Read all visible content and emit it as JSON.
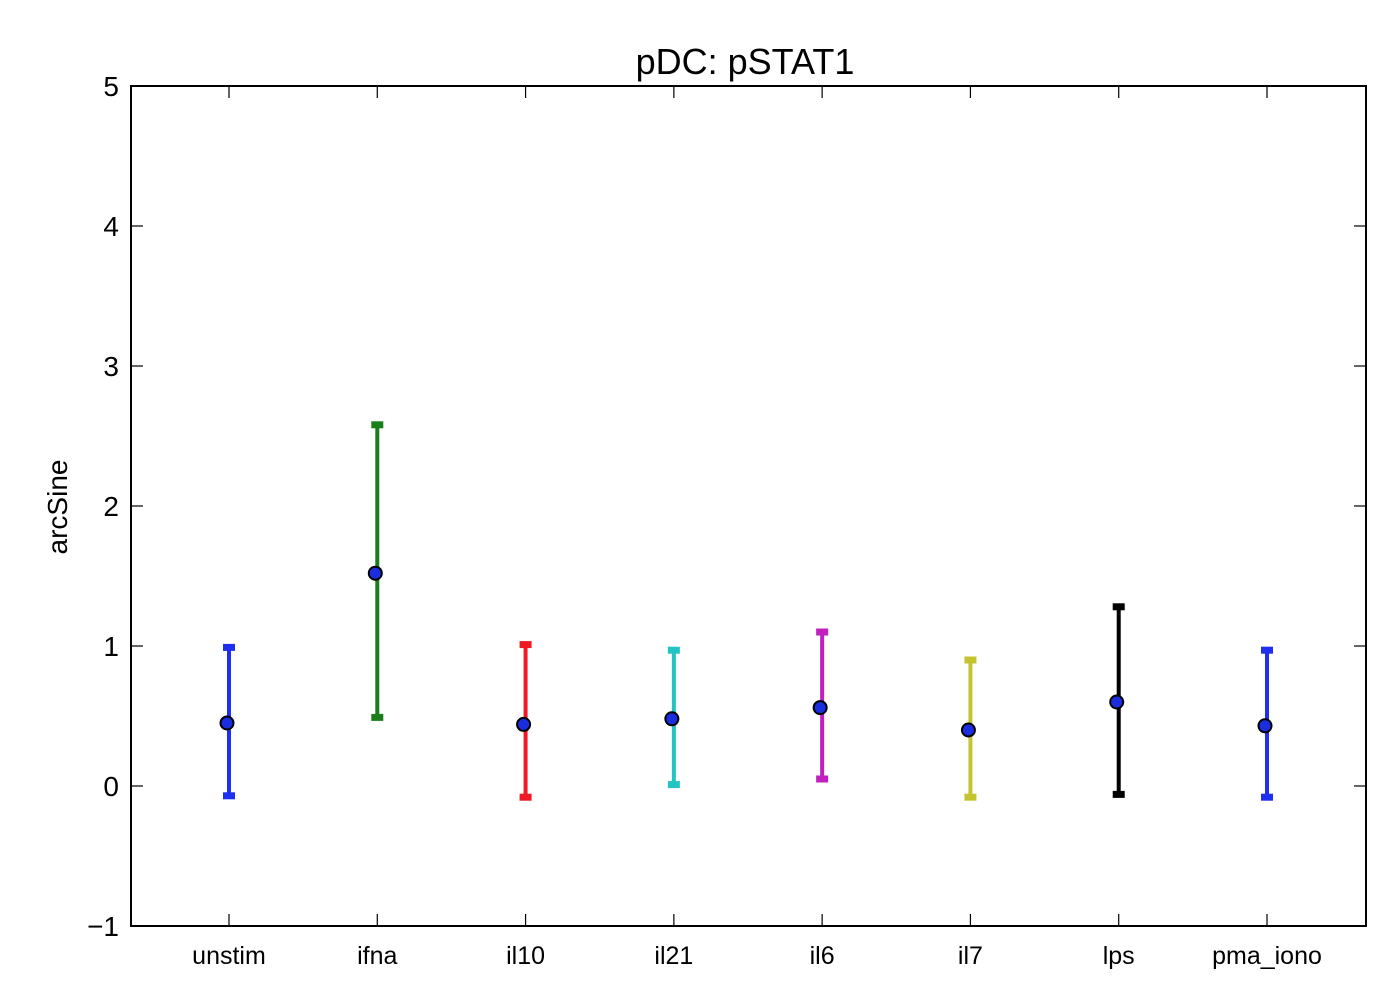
{
  "chart_data": {
    "type": "errorbar",
    "title": "pDC: pSTAT1",
    "xlabel": "",
    "ylabel": "arcSine",
    "ylim": [
      -1,
      5
    ],
    "yticks": [
      "−1",
      "0",
      "1",
      "2",
      "3",
      "4",
      "5"
    ],
    "ytick_values": [
      -1,
      0,
      1,
      2,
      3,
      4,
      5
    ],
    "categories": [
      "unstim",
      "ifna",
      "il10",
      "il21",
      "il6",
      "il7",
      "lps",
      "pma_iono"
    ],
    "means": [
      0.45,
      1.52,
      0.44,
      0.48,
      0.56,
      0.4,
      0.6,
      0.43
    ],
    "lower": [
      -0.07,
      0.49,
      -0.08,
      0.01,
      0.05,
      -0.08,
      -0.06,
      -0.08
    ],
    "upper": [
      0.99,
      2.58,
      1.01,
      0.97,
      1.1,
      0.9,
      1.28,
      0.97
    ],
    "colors": [
      "#1f2ff0",
      "#1a7f1a",
      "#f01a24",
      "#22c4c4",
      "#c020c0",
      "#c4c430",
      "#000000",
      "#1f2ff0"
    ],
    "marker_color": "#1a2ee0",
    "marker_edge": "#000000",
    "grid": false
  }
}
